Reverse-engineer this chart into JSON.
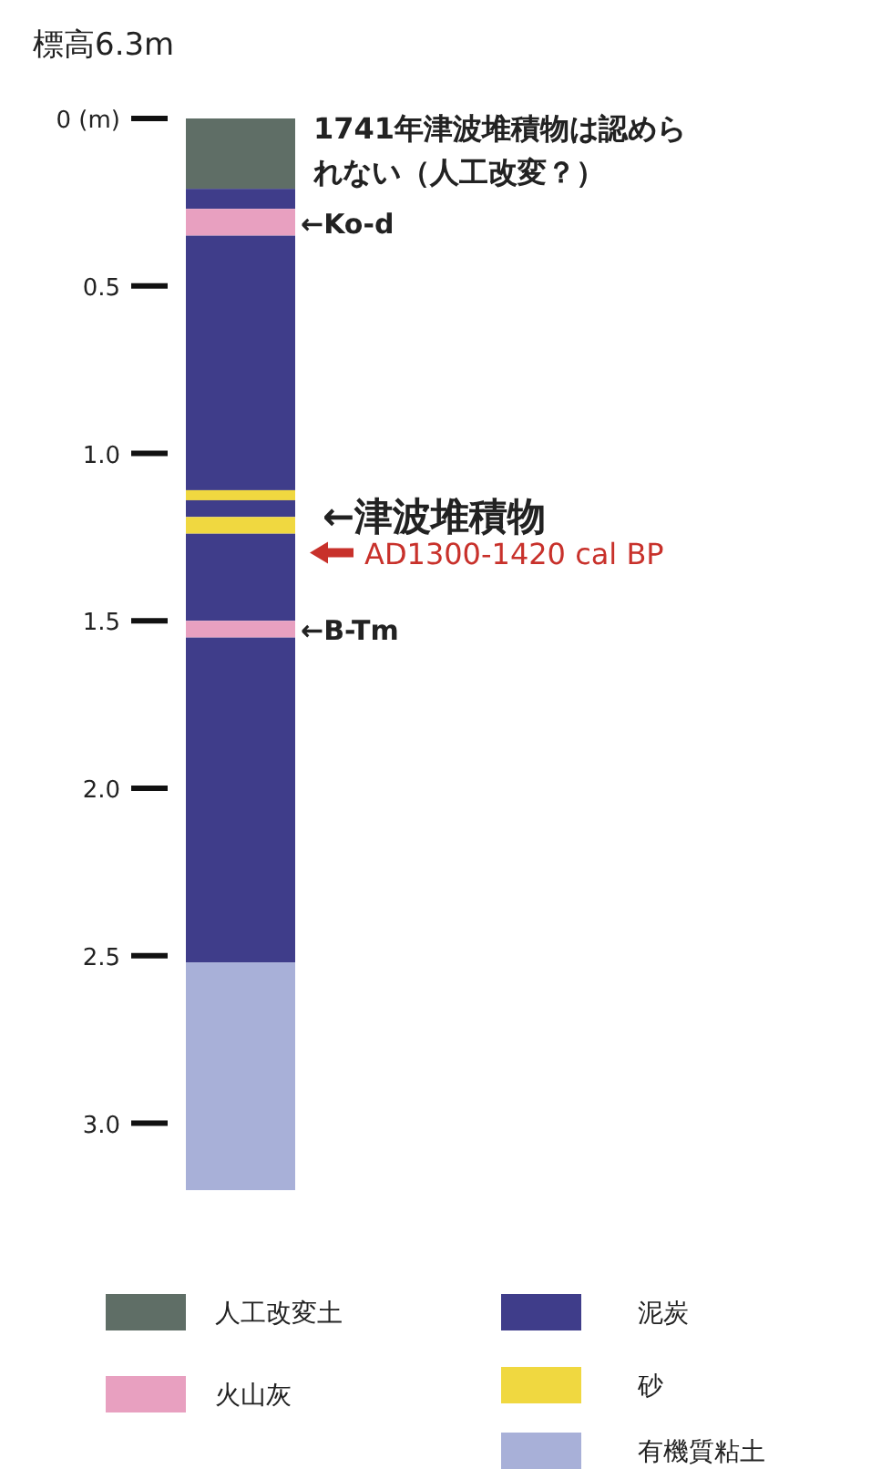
{
  "chart_data": {
    "type": "bar",
    "stacked": true,
    "title": "標高6.3m",
    "categories": [
      null
    ],
    "ylim": [
      3.2,
      0
    ],
    "yticks": [
      {
        "value": 0,
        "label": "0 (m)"
      },
      0.5,
      {
        "value": 1,
        "label": "1.0"
      },
      1.5,
      {
        "value": 2,
        "label": "2.0"
      },
      2.5,
      {
        "value": 3,
        "label": "3.0"
      }
    ],
    "series": [
      {
        "name": "人工改変土",
        "color": "#5f6e66",
        "values": [
          0.21
        ]
      },
      {
        "color": "#3f3d8a",
        "values": [
          0.06
        ]
      },
      {
        "name": "火山灰",
        "color": "#e8a0c0",
        "values": [
          0.08
        ]
      },
      {
        "name": "泥炭",
        "color": "#3f3d8a",
        "values": [
          0.76
        ]
      },
      {
        "color": "#f0d840",
        "values": [
          0.03
        ]
      },
      {
        "color": "#3f3d8a",
        "values": [
          0.05
        ]
      },
      {
        "name": "砂",
        "color": "#f0d840",
        "values": [
          0.05
        ]
      },
      {
        "color": "#3f3d8a",
        "values": [
          0.26
        ]
      },
      {
        "color": "#e8a0c0",
        "values": [
          0.05
        ]
      },
      {
        "color": "#3f3d8a",
        "values": [
          0.97
        ]
      },
      {
        "name": "有機質粘土",
        "color": "#a8b0d8",
        "values": [
          0.68
        ]
      }
    ],
    "annotations": [
      "1741年津波堆積物は認められない（人工改変？）",
      "←Ko-d",
      "←津波堆積物",
      "AD1300-1420 cal BP",
      "←B-Tm"
    ],
    "legend": "bottom"
  }
}
